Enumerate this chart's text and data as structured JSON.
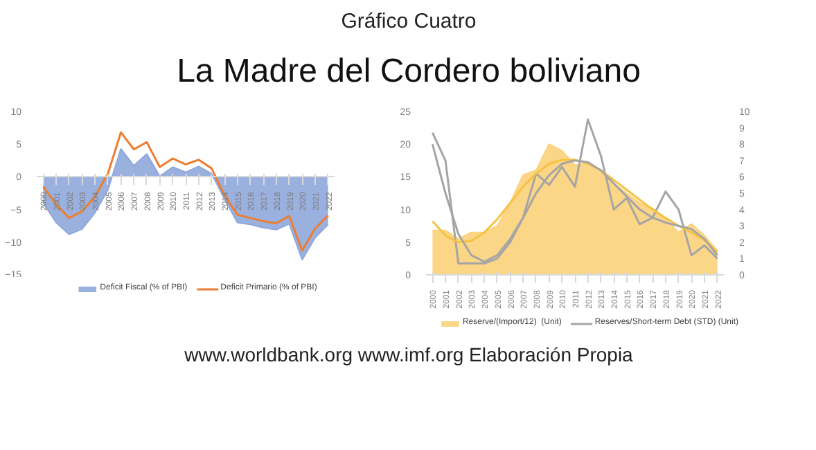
{
  "chart_data": [
    {
      "type": "area",
      "annotations": [
        "Gráfico Cuatro",
        "La Madre del Cordero boliviano"
      ],
      "categories": [
        "2000",
        "2001",
        "2002",
        "2003",
        "2004",
        "2005",
        "2006",
        "2007",
        "2008",
        "2009",
        "2010",
        "2011",
        "2012",
        "2013",
        "2014",
        "2015",
        "2016",
        "2017",
        "2018",
        "2019",
        "2020",
        "2021",
        "2022"
      ],
      "series": [
        {
          "name": "Deficit Fiscal (% of PBI)",
          "color": "#8fa8dc",
          "values": [
            -4,
            -7,
            -8.8,
            -8,
            -5.5,
            -2,
            4.3,
            1.7,
            3.5,
            0.1,
            1.5,
            0.7,
            1.6,
            0.5,
            -3.4,
            -7,
            -7.3,
            -7.8,
            -8.1,
            -7.2,
            -12.7,
            -9.3,
            -7.3
          ]
        },
        {
          "name": "Deficit Primario (% of PBI)",
          "type": "line",
          "color": "#ed7d31",
          "values": [
            -1.5,
            -4.2,
            -6.3,
            -5.3,
            -3,
            0.5,
            6.8,
            4.2,
            5.3,
            1.5,
            2.8,
            1.9,
            2.6,
            1.3,
            -2.8,
            -5.8,
            -6.3,
            -6.8,
            -7.1,
            -6,
            -11.3,
            -7.9,
            -5.9
          ]
        }
      ],
      "ylim": [
        -15,
        10
      ],
      "yticks": [
        -15,
        -10,
        -5,
        0,
        5,
        10
      ],
      "grid": false,
      "legend": "bottom"
    },
    {
      "type": "area",
      "annotations": [
        "www.worldbank.org www.imf.org Elaboración Propia"
      ],
      "categories": [
        "2000",
        "2001",
        "2002",
        "2003",
        "2004",
        "2005",
        "2006",
        "2007",
        "2008",
        "2009",
        "2010",
        "2011",
        "2012",
        "2013",
        "2014",
        "2015",
        "2016",
        "2017",
        "2018",
        "2019",
        "2020",
        "2021",
        "2022"
      ],
      "series": [
        {
          "name": "Reserve/(Import/12)  (Unit)",
          "color": "#fcd27a",
          "values": [
            6.8,
            6.8,
            5.5,
            6.5,
            6.5,
            7.5,
            11,
            15.3,
            16,
            20,
            19,
            16.8,
            17,
            16,
            14,
            12.5,
            11,
            10.2,
            8.5,
            6.5,
            7.8,
            6,
            3.7
          ]
        },
        {
          "name": "Reserves/Short-term Debt (STD) (Unit)",
          "type": "line",
          "axis": "y2",
          "color": "#a5a5a5",
          "values": [
            8.7,
            7,
            0.7,
            0.7,
            0.7,
            1,
            2,
            3.5,
            6.2,
            5.5,
            6.6,
            5.4,
            9.5,
            7.3,
            4,
            4.7,
            3.1,
            3.5,
            5.1,
            4,
            1.2,
            1.8,
            1
          ]
        },
        {
          "type": "line",
          "color": "#f5c242",
          "values": [
            8.2,
            6,
            5,
            5.2,
            6.5,
            8.5,
            11,
            13.5,
            15.5,
            17,
            17.6,
            17.6,
            17,
            16,
            14.5,
            13,
            11.5,
            10,
            8.7,
            7.5,
            6.5,
            5.3,
            3.5
          ]
        },
        {
          "type": "line",
          "axis": "y2",
          "color": "#a5a5a5",
          "values": [
            8,
            5,
            2.5,
            1.2,
            0.8,
            1.2,
            2.2,
            3.5,
            5,
            6.1,
            6.8,
            7,
            6.9,
            6.4,
            5.6,
            4.8,
            4,
            3.5,
            3.2,
            3,
            2.8,
            2.2,
            1.2
          ]
        }
      ],
      "ylim": [
        0,
        25
      ],
      "yticks": [
        0,
        5,
        10,
        15,
        20,
        25
      ],
      "y2lim": [
        0,
        10
      ],
      "y2ticks": [
        0,
        1,
        2,
        3,
        4,
        5,
        6,
        7,
        8,
        9,
        10
      ],
      "grid": false,
      "legend": "bottom"
    }
  ]
}
